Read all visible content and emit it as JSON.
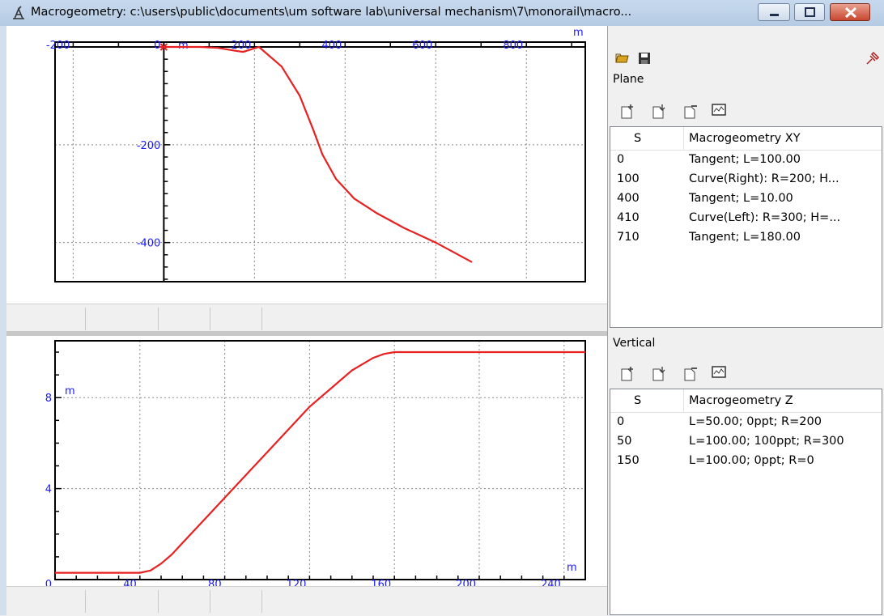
{
  "window": {
    "title": "Macrogeometry: c:\\users\\public\\documents\\um software lab\\universal mechanism\\7\\monorail\\macro...",
    "controls": [
      "minimize",
      "maximize",
      "close"
    ]
  },
  "plan_plot": {
    "unit_x": "m",
    "unit_y": "m",
    "x_ticks": [
      "-200",
      "0",
      "200",
      "400",
      "600",
      "800"
    ],
    "y_ticks": [
      "-200",
      "-400"
    ],
    "line_color": "#e82020",
    "tick_color": "#1a1aff"
  },
  "vertical_plot": {
    "unit_x": "m",
    "unit_y": "m",
    "x_ticks": [
      "0",
      "40",
      "80",
      "120",
      "160",
      "200",
      "240"
    ],
    "y_ticks": [
      "8",
      "4"
    ],
    "line_color": "#e82020",
    "tick_color": "#1a1aff"
  },
  "chart_data": [
    {
      "type": "line",
      "name": "plan",
      "xlim": [
        -240,
        930
      ],
      "ylim": [
        -480,
        10
      ],
      "x": [
        -10,
        80,
        120,
        160,
        175,
        210,
        260,
        300,
        330,
        350,
        380,
        420,
        470,
        530,
        600,
        680
      ],
      "y": [
        0,
        0,
        -2,
        -8,
        -10,
        0,
        -40,
        -100,
        -170,
        -220,
        -270,
        -310,
        -340,
        -370,
        -400,
        -440
      ]
    },
    {
      "type": "line",
      "name": "vertical",
      "xlim": [
        0,
        250
      ],
      "ylim": [
        0,
        10.5
      ],
      "x": [
        0,
        40,
        45,
        50,
        55,
        60,
        70,
        80,
        100,
        120,
        140,
        150,
        155,
        160,
        250
      ],
      "y": [
        0.3,
        0.3,
        0.4,
        0.7,
        1.1,
        1.6,
        2.6,
        3.6,
        5.6,
        7.6,
        9.2,
        9.75,
        9.92,
        10,
        10
      ]
    }
  ],
  "plane_panel": {
    "label": "Plane",
    "columns": [
      "S",
      "Macrogeometry XY"
    ],
    "rows": [
      {
        "s": "0",
        "value": "Tangent; L=100.00"
      },
      {
        "s": "100",
        "value": "Curve(Right): R=200; H..."
      },
      {
        "s": "400",
        "value": "Tangent; L=10.00"
      },
      {
        "s": "410",
        "value": "Curve(Left): R=300; H=..."
      },
      {
        "s": "710",
        "value": "Tangent; L=180.00"
      }
    ]
  },
  "vertical_panel": {
    "label": "Vertical",
    "columns": [
      "S",
      "Macrogeometry Z"
    ],
    "rows": [
      {
        "s": "0",
        "value": "L=50.00; 0ppt; R=200"
      },
      {
        "s": "50",
        "value": "L=100.00; 100ppt; R=300"
      },
      {
        "s": "150",
        "value": "L=100.00; 0ppt; R=0"
      }
    ]
  },
  "toolbar_icons": [
    "open-icon",
    "save-icon",
    "pin-icon"
  ],
  "list_toolbar_icons": [
    "add-element-icon",
    "insert-element-icon",
    "delete-element-icon",
    "view-graph-icon"
  ]
}
